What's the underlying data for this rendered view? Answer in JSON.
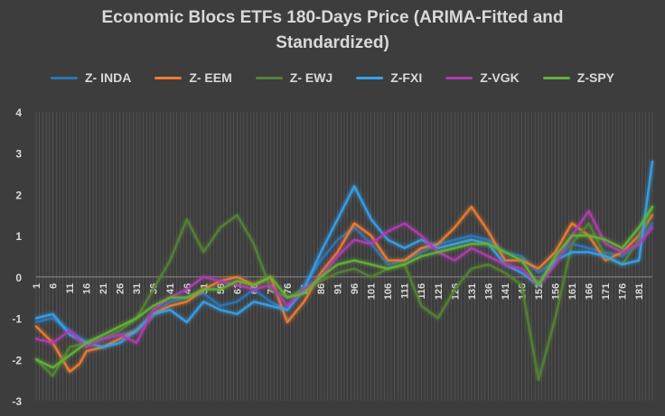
{
  "chart_data": {
    "type": "line",
    "title_lines": [
      "Economic Blocs ETFs 180-Days Price (ARIMA-Fitted and",
      "Standardized)"
    ],
    "xlabel": "",
    "ylabel": "",
    "ylim": [
      -3,
      4
    ],
    "y_ticks": [
      "4",
      "3",
      "2",
      "1",
      "0",
      "-1",
      "-2",
      "-3"
    ],
    "x_tick_labels": [
      "1",
      "6",
      "11",
      "16",
      "21",
      "26",
      "31",
      "36",
      "41",
      "46",
      "51",
      "56",
      "61",
      "66",
      "71",
      "76",
      "81",
      "86",
      "91",
      "96",
      "101",
      "106",
      "111",
      "116",
      "121",
      "126",
      "131",
      "136",
      "141",
      "146",
      "151",
      "156",
      "161",
      "166",
      "171",
      "176",
      "181"
    ],
    "x_range": [
      1,
      185
    ],
    "grid": true,
    "legend_position": "top",
    "series": [
      {
        "name": "Z- INDA",
        "color": "#2e75b6",
        "points": [
          [
            1,
            -1.1
          ],
          [
            6,
            -1.0
          ],
          [
            11,
            -1.3
          ],
          [
            16,
            -1.6
          ],
          [
            21,
            -1.5
          ],
          [
            26,
            -1.4
          ],
          [
            31,
            -1.3
          ],
          [
            36,
            -0.9
          ],
          [
            41,
            -0.6
          ],
          [
            46,
            -0.5
          ],
          [
            51,
            -0.4
          ],
          [
            56,
            -0.7
          ],
          [
            61,
            -0.6
          ],
          [
            66,
            -0.3
          ],
          [
            71,
            -0.6
          ],
          [
            76,
            -0.8
          ],
          [
            81,
            -0.2
          ],
          [
            86,
            0.4
          ],
          [
            91,
            0.9
          ],
          [
            96,
            1.2
          ],
          [
            101,
            0.8
          ],
          [
            106,
            0.3
          ],
          [
            111,
            0.4
          ],
          [
            116,
            0.6
          ],
          [
            121,
            0.8
          ],
          [
            126,
            0.9
          ],
          [
            131,
            1.0
          ],
          [
            136,
            0.9
          ],
          [
            141,
            0.6
          ],
          [
            146,
            0.5
          ],
          [
            151,
            0.1
          ],
          [
            156,
            0.4
          ],
          [
            161,
            0.8
          ],
          [
            166,
            0.7
          ],
          [
            171,
            0.6
          ],
          [
            176,
            0.5
          ],
          [
            181,
            0.8
          ],
          [
            185,
            1.3
          ]
        ]
      },
      {
        "name": "Z- EEM",
        "color": "#ed7d31",
        "points": [
          [
            1,
            -1.2
          ],
          [
            6,
            -1.6
          ],
          [
            11,
            -2.3
          ],
          [
            14,
            -2.1
          ],
          [
            16,
            -1.8
          ],
          [
            21,
            -1.7
          ],
          [
            26,
            -1.5
          ],
          [
            31,
            -1.3
          ],
          [
            36,
            -0.9
          ],
          [
            41,
            -0.7
          ],
          [
            46,
            -0.6
          ],
          [
            51,
            -0.3
          ],
          [
            56,
            -0.1
          ],
          [
            61,
            0.0
          ],
          [
            66,
            -0.2
          ],
          [
            71,
            0.0
          ],
          [
            76,
            -1.1
          ],
          [
            81,
            -0.6
          ],
          [
            86,
            0.1
          ],
          [
            91,
            0.6
          ],
          [
            96,
            1.3
          ],
          [
            101,
            1.0
          ],
          [
            106,
            0.4
          ],
          [
            111,
            0.4
          ],
          [
            116,
            0.7
          ],
          [
            121,
            0.8
          ],
          [
            126,
            1.2
          ],
          [
            131,
            1.7
          ],
          [
            136,
            1.1
          ],
          [
            141,
            0.4
          ],
          [
            146,
            0.4
          ],
          [
            151,
            0.2
          ],
          [
            156,
            0.6
          ],
          [
            161,
            1.3
          ],
          [
            166,
            1.0
          ],
          [
            171,
            0.4
          ],
          [
            176,
            0.6
          ],
          [
            181,
            1.0
          ],
          [
            185,
            1.5
          ]
        ]
      },
      {
        "name": "Z- EWJ",
        "color": "#548235",
        "points": [
          [
            1,
            -2.0
          ],
          [
            6,
            -2.4
          ],
          [
            11,
            -1.7
          ],
          [
            16,
            -1.6
          ],
          [
            21,
            -1.5
          ],
          [
            26,
            -1.3
          ],
          [
            31,
            -1.0
          ],
          [
            36,
            -0.3
          ],
          [
            41,
            0.4
          ],
          [
            46,
            1.4
          ],
          [
            51,
            0.6
          ],
          [
            56,
            1.2
          ],
          [
            61,
            1.5
          ],
          [
            66,
            0.8
          ],
          [
            71,
            -0.3
          ],
          [
            76,
            -0.5
          ],
          [
            81,
            -0.3
          ],
          [
            86,
            -0.1
          ],
          [
            91,
            0.1
          ],
          [
            96,
            0.2
          ],
          [
            101,
            0.0
          ],
          [
            106,
            0.2
          ],
          [
            111,
            0.3
          ],
          [
            116,
            -0.7
          ],
          [
            121,
            -1.0
          ],
          [
            126,
            -0.3
          ],
          [
            131,
            0.2
          ],
          [
            136,
            0.3
          ],
          [
            141,
            0.1
          ],
          [
            146,
            -0.2
          ],
          [
            151,
            -2.5
          ],
          [
            156,
            -1.0
          ],
          [
            161,
            0.8
          ],
          [
            166,
            1.3
          ],
          [
            171,
            0.5
          ],
          [
            176,
            0.3
          ],
          [
            181,
            0.9
          ],
          [
            185,
            1.7
          ]
        ]
      },
      {
        "name": "Z-FXI",
        "color": "#36a2eb",
        "points": [
          [
            1,
            -1.0
          ],
          [
            6,
            -0.9
          ],
          [
            11,
            -1.4
          ],
          [
            16,
            -1.6
          ],
          [
            21,
            -1.7
          ],
          [
            26,
            -1.6
          ],
          [
            31,
            -1.3
          ],
          [
            36,
            -0.9
          ],
          [
            41,
            -0.8
          ],
          [
            46,
            -1.1
          ],
          [
            51,
            -0.6
          ],
          [
            56,
            -0.8
          ],
          [
            61,
            -0.9
          ],
          [
            66,
            -0.6
          ],
          [
            71,
            -0.7
          ],
          [
            76,
            -0.8
          ],
          [
            81,
            -0.3
          ],
          [
            86,
            0.6
          ],
          [
            91,
            1.4
          ],
          [
            96,
            2.2
          ],
          [
            101,
            1.4
          ],
          [
            106,
            0.9
          ],
          [
            111,
            0.7
          ],
          [
            116,
            0.9
          ],
          [
            121,
            0.7
          ],
          [
            126,
            0.8
          ],
          [
            131,
            0.9
          ],
          [
            136,
            0.8
          ],
          [
            141,
            0.3
          ],
          [
            146,
            0.1
          ],
          [
            151,
            -0.2
          ],
          [
            156,
            0.4
          ],
          [
            161,
            0.6
          ],
          [
            166,
            0.6
          ],
          [
            171,
            0.5
          ],
          [
            176,
            0.3
          ],
          [
            181,
            0.4
          ],
          [
            185,
            2.8
          ]
        ]
      },
      {
        "name": "Z-VGK",
        "color": "#b03cb0",
        "points": [
          [
            1,
            -1.5
          ],
          [
            6,
            -1.6
          ],
          [
            11,
            -1.3
          ],
          [
            16,
            -1.7
          ],
          [
            21,
            -1.5
          ],
          [
            26,
            -1.4
          ],
          [
            31,
            -1.6
          ],
          [
            36,
            -0.8
          ],
          [
            41,
            -0.5
          ],
          [
            46,
            -0.3
          ],
          [
            51,
            0.0
          ],
          [
            56,
            -0.1
          ],
          [
            61,
            -0.2
          ],
          [
            66,
            -0.3
          ],
          [
            71,
            -0.2
          ],
          [
            76,
            -0.7
          ],
          [
            81,
            -0.3
          ],
          [
            86,
            0.0
          ],
          [
            91,
            0.5
          ],
          [
            96,
            0.9
          ],
          [
            101,
            0.8
          ],
          [
            106,
            1.1
          ],
          [
            111,
            1.3
          ],
          [
            116,
            1.0
          ],
          [
            121,
            0.6
          ],
          [
            126,
            0.4
          ],
          [
            131,
            0.7
          ],
          [
            136,
            0.5
          ],
          [
            141,
            0.3
          ],
          [
            146,
            0.2
          ],
          [
            151,
            -0.2
          ],
          [
            156,
            0.3
          ],
          [
            161,
            1.0
          ],
          [
            166,
            1.6
          ],
          [
            171,
            0.8
          ],
          [
            176,
            0.6
          ],
          [
            181,
            0.8
          ],
          [
            185,
            1.2
          ]
        ]
      },
      {
        "name": "Z-SPY",
        "color": "#62b338",
        "points": [
          [
            1,
            -2.0
          ],
          [
            6,
            -2.2
          ],
          [
            11,
            -1.9
          ],
          [
            16,
            -1.6
          ],
          [
            21,
            -1.4
          ],
          [
            26,
            -1.2
          ],
          [
            31,
            -1.0
          ],
          [
            36,
            -0.7
          ],
          [
            41,
            -0.5
          ],
          [
            46,
            -0.5
          ],
          [
            51,
            -0.3
          ],
          [
            56,
            -0.3
          ],
          [
            61,
            -0.1
          ],
          [
            66,
            -0.2
          ],
          [
            71,
            0.0
          ],
          [
            76,
            -0.5
          ],
          [
            81,
            -0.4
          ],
          [
            86,
            0.0
          ],
          [
            91,
            0.3
          ],
          [
            96,
            0.4
          ],
          [
            101,
            0.3
          ],
          [
            106,
            0.2
          ],
          [
            111,
            0.3
          ],
          [
            116,
            0.5
          ],
          [
            121,
            0.6
          ],
          [
            126,
            0.7
          ],
          [
            131,
            0.8
          ],
          [
            136,
            0.8
          ],
          [
            141,
            0.6
          ],
          [
            146,
            0.4
          ],
          [
            151,
            -0.2
          ],
          [
            156,
            0.5
          ],
          [
            161,
            1.0
          ],
          [
            166,
            1.0
          ],
          [
            171,
            0.9
          ],
          [
            176,
            0.7
          ],
          [
            181,
            1.2
          ],
          [
            185,
            1.7
          ]
        ]
      }
    ]
  }
}
